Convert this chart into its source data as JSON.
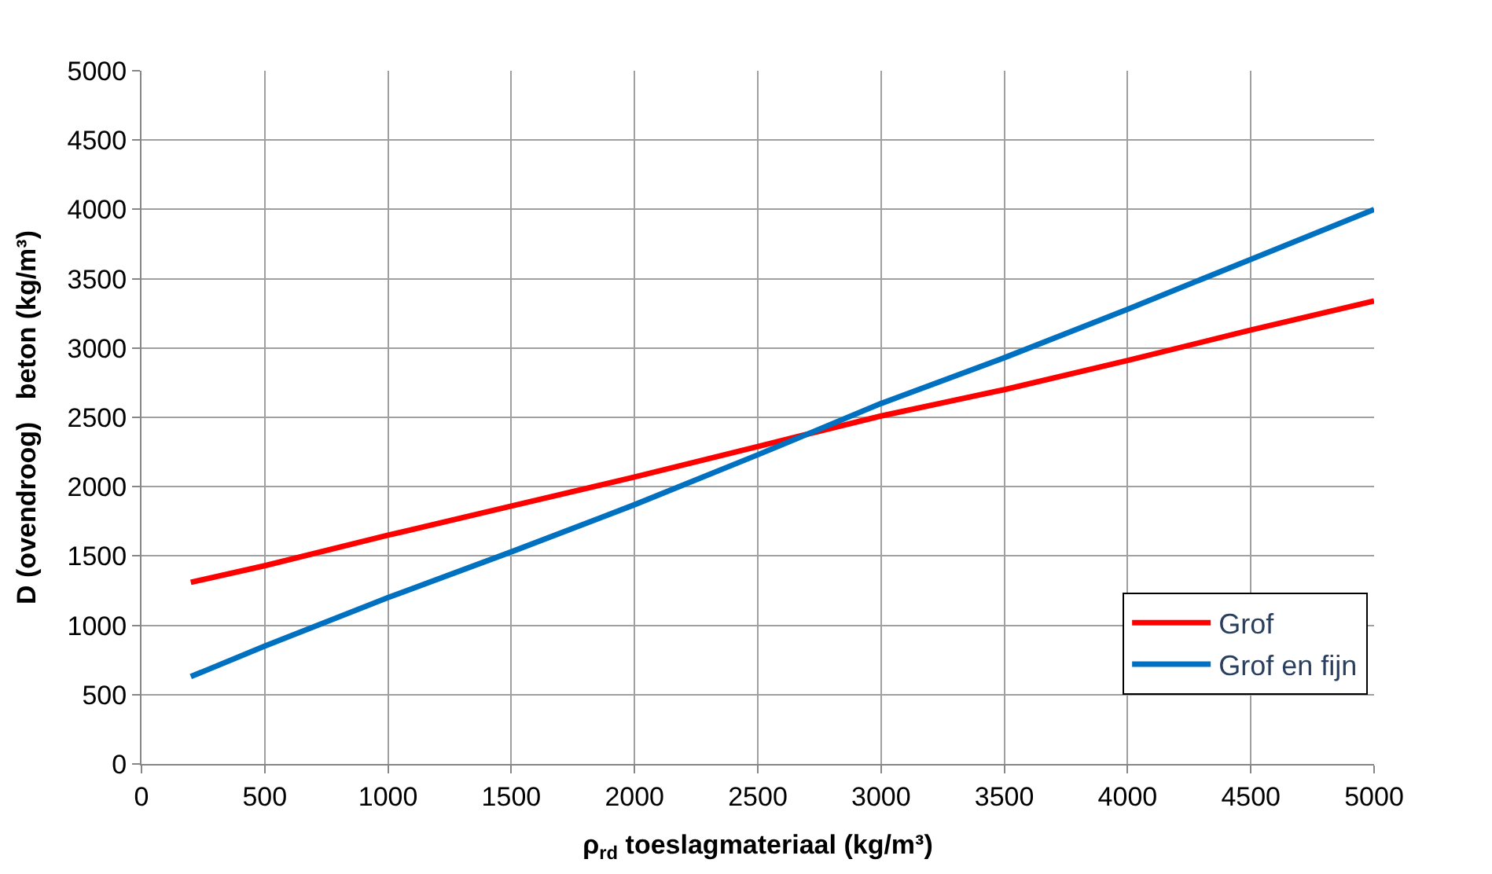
{
  "chart_data": {
    "type": "line",
    "xlabel": "ρ$_{rd}$ toeslagmateriaal (kg/m³)",
    "ylabel": "D (ovendroog)   beton (kg/m³)",
    "x": [
      200,
      500,
      1000,
      1500,
      2000,
      2500,
      3000,
      3500,
      4000,
      4500,
      5000
    ],
    "series": [
      {
        "name": "Grof",
        "color": "#ff0000",
        "values": [
          1310,
          1430,
          1650,
          1860,
          2070,
          2290,
          2510,
          2700,
          2910,
          3130,
          3340
        ]
      },
      {
        "name": "Grof en fijn",
        "color": "#0070c0",
        "values": [
          630,
          850,
          1200,
          1530,
          1870,
          2230,
          2600,
          2930,
          3280,
          3640,
          4000
        ]
      }
    ],
    "xlim": [
      0,
      5000
    ],
    "xticks": [
      0,
      500,
      1000,
      1500,
      2000,
      2500,
      3000,
      3500,
      4000,
      4500,
      5000
    ],
    "ylim": [
      0,
      5000
    ],
    "yticks": [
      0,
      500,
      1000,
      1500,
      2000,
      2500,
      3000,
      3500,
      4000,
      4500,
      5000
    ],
    "grid": true,
    "legend": "bottom right",
    "marker": "none",
    "line_style": "solid"
  }
}
